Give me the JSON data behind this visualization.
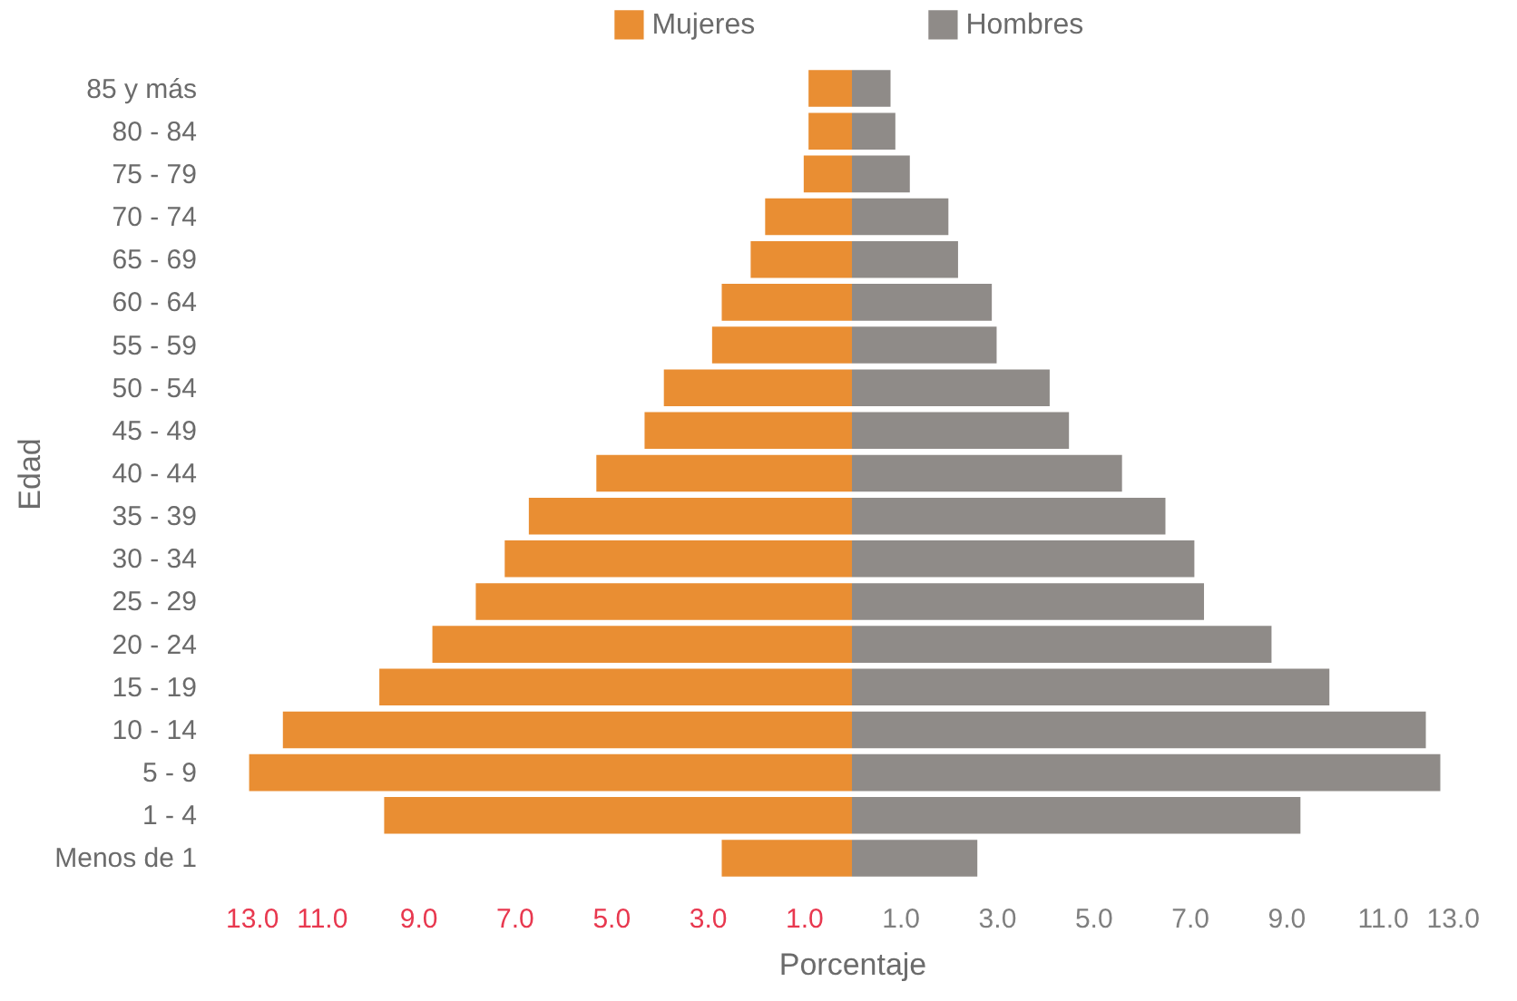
{
  "chart_data": {
    "type": "bar",
    "orientation": "horizontal",
    "stacked": true,
    "categories": [
      "85 y más",
      "80 - 84",
      "75 - 79",
      "70 - 74",
      "65 - 69",
      "60 - 64",
      "55 - 59",
      "50 - 54",
      "45 - 49",
      "40 - 44",
      "35 - 39",
      "30 - 34",
      "25 - 29",
      "20 - 24",
      "15 - 19",
      "10 - 14",
      "5 - 9",
      "1 - 4",
      "Menos de 1"
    ],
    "series": [
      {
        "name": "Mujeres",
        "color": "#e98e33",
        "values": [
          -0.9,
          -0.9,
          -1.0,
          -1.8,
          -2.1,
          -2.7,
          -2.9,
          -3.9,
          -4.3,
          -5.3,
          -6.7,
          -7.2,
          -7.8,
          -8.7,
          -9.8,
          -11.8,
          -12.5,
          -9.7,
          -2.7
        ]
      },
      {
        "name": "Hombres",
        "color": "#8f8b88",
        "values": [
          0.8,
          0.9,
          1.2,
          2.0,
          2.2,
          2.9,
          3.0,
          4.1,
          4.5,
          5.6,
          6.5,
          7.1,
          7.3,
          8.7,
          9.9,
          11.9,
          12.2,
          9.3,
          2.6
        ]
      }
    ],
    "xlabel": "Porcentaje",
    "ylabel": "Edad",
    "xlim": [
      -13,
      13
    ],
    "xticks": [
      {
        "value": -13,
        "label": "13.0"
      },
      {
        "value": -11,
        "label": "11.0"
      },
      {
        "value": -9,
        "label": "9.0"
      },
      {
        "value": -7,
        "label": "7.0"
      },
      {
        "value": -5,
        "label": "5.0"
      },
      {
        "value": -3,
        "label": "3.0"
      },
      {
        "value": -1,
        "label": "1.0"
      },
      {
        "value": 1,
        "label": "1.0"
      },
      {
        "value": 3,
        "label": "3.0"
      },
      {
        "value": 5,
        "label": "5.0"
      },
      {
        "value": 7,
        "label": "7.0"
      },
      {
        "value": 9,
        "label": "9.0"
      },
      {
        "value": 11,
        "label": "11.0"
      },
      {
        "value": 13,
        "label": "13.0"
      }
    ],
    "grid": false,
    "legend": "top"
  }
}
